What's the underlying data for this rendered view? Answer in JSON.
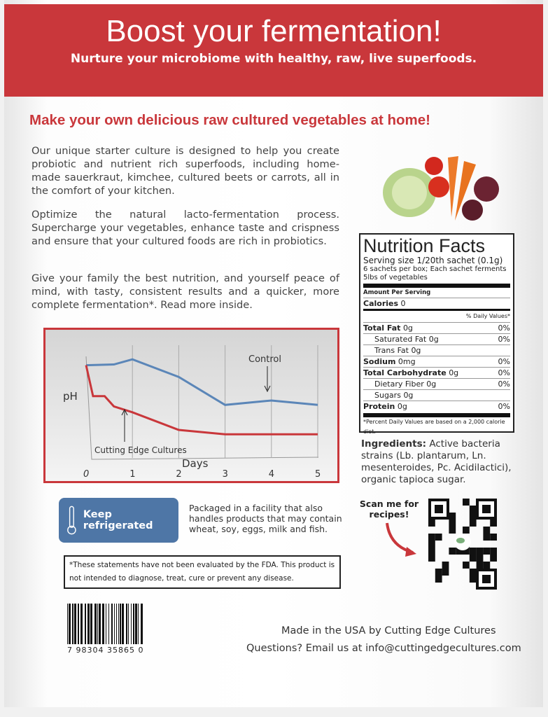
{
  "banner": {
    "title": "Boost your fermentation!",
    "subtitle": "Nurture your microbiome with healthy, raw, live superfoods."
  },
  "headline": "Make your own delicious raw cultured vegetables at home!",
  "paragraphs": [
    "Our unique starter culture is designed to help you create probiotic and nutrient rich superfoods, including home-made sauerkraut, kimchee, cultured beets or carrots, all in the comfort of your kitchen.",
    "Optimize the natural lacto-fermentation process. Supercharge your vegetables, enhance taste and crispness and ensure that your cultured foods are rich in probiotics.",
    "Give your family the best nutrition, and yourself peace of mind, with tasty, consistent results and a quicker, more complete fermentation*. Read more inside."
  ],
  "chart_data": {
    "type": "line",
    "xlabel": "Days",
    "ylabel": "pH",
    "x_ticks": [
      "0",
      "1",
      "2",
      "3",
      "4",
      "5"
    ],
    "xlim": [
      0,
      5
    ],
    "grid": "vertical",
    "series": [
      {
        "name": "Control",
        "color": "#5b86b8",
        "x": [
          0,
          0.6,
          1,
          2,
          3,
          4,
          5
        ],
        "y": [
          6.4,
          6.45,
          6.8,
          5.6,
          3.7,
          4.0,
          3.7
        ]
      },
      {
        "name": "Cutting Edge Cultures",
        "color": "#c9373b",
        "x": [
          0,
          0.15,
          0.4,
          0.6,
          1,
          2,
          3,
          5
        ],
        "y": [
          6.4,
          4.3,
          4.3,
          3.6,
          3.2,
          2.0,
          1.7,
          1.7
        ]
      }
    ]
  },
  "nutrition": {
    "title": "Nutrition Facts",
    "serving": "Serving size 1/20th sachet (0.1g)",
    "note": "6 sachets per box; Each sachet ferments 5lbs of vegetables",
    "amount_per_serving": "Amount Per Serving",
    "calories_label": "Calories",
    "calories": "0",
    "dv_header": "% Daily Values*",
    "rows": [
      {
        "label": "Total Fat",
        "value": "0g",
        "dv": "0%",
        "bold": true
      },
      {
        "label": "Saturated Fat",
        "value": "0g",
        "dv": "0%"
      },
      {
        "label": "Trans Fat",
        "value": "0g",
        "dv": ""
      },
      {
        "label": "Sodium",
        "value": "0mg",
        "dv": "0%",
        "bold": true
      },
      {
        "label": "Total Carbohydrate",
        "value": "0g",
        "dv": "0%",
        "bold": true
      },
      {
        "label": "Dietary Fiber",
        "value": "0g",
        "dv": "0%"
      },
      {
        "label": "Sugars",
        "value": "0g",
        "dv": ""
      },
      {
        "label": "Protein",
        "value": "0g",
        "dv": "0%",
        "bold": true
      }
    ],
    "footnote": "*Percent Daily Values are based on a 2,000 calorie diet."
  },
  "ingredients": {
    "label": "Ingredients:",
    "text": " Active bacteria strains (Lb. plantarum, Ln. mesenteroides, Pc. Acidilactici), organic tapioca sugar."
  },
  "storage": {
    "label": "Keep refrigerated",
    "icon": "thermometer-icon"
  },
  "allergen": "Packaged in a facility that also handles products that may contain wheat, soy, eggs, milk and fish.",
  "fda": "*These statements have not been evaluated by the FDA. This product is not intended to diagnose, treat, cure or prevent any disease.",
  "scan": "Scan me for recipes!",
  "barcode": {
    "digits": "7 98304 35865 0"
  },
  "made_in": "Made in the USA by Cutting Edge Cultures",
  "questions": "Questions? Email us at info@cuttingedgecultures.com",
  "colors": {
    "brand_red": "#c9373b",
    "fridge_blue": "#4e76a6"
  }
}
